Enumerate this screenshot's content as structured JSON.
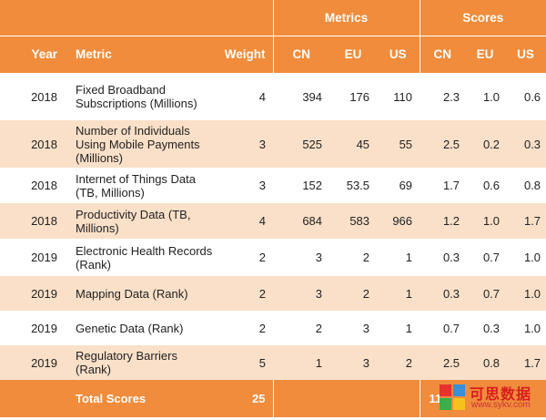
{
  "header": {
    "group_metrics": "Metrics",
    "group_scores": "Scores",
    "col_year": "Year",
    "col_metric": "Metric",
    "col_weight": "Weight",
    "col_m_cn": "CN",
    "col_m_eu": "EU",
    "col_m_us": "US",
    "col_s_cn": "CN",
    "col_s_eu": "EU",
    "col_s_us": "US"
  },
  "rows": [
    {
      "year": "2018",
      "metric": "Fixed Broadband Subscriptions (Millions)",
      "weight": "4",
      "cn": "394",
      "eu": "176",
      "us": "110",
      "s_cn": "2.3",
      "s_eu": "1.0",
      "s_us": "0.6"
    },
    {
      "year": "2018",
      "metric": "Number of Individuals Using Mobile Payments (Millions)",
      "weight": "3",
      "cn": "525",
      "eu": "45",
      "us": "55",
      "s_cn": "2.5",
      "s_eu": "0.2",
      "s_us": "0.3"
    },
    {
      "year": "2018",
      "metric": "Internet of Things Data (TB, Millions)",
      "weight": "3",
      "cn": "152",
      "eu": "53.5",
      "us": "69",
      "s_cn": "1.7",
      "s_eu": "0.6",
      "s_us": "0.8"
    },
    {
      "year": "2018",
      "metric": "Productivity Data (TB, Millions)",
      "weight": "4",
      "cn": "684",
      "eu": "583",
      "us": "966",
      "s_cn": "1.2",
      "s_eu": "1.0",
      "s_us": "1.7"
    },
    {
      "year": "2019",
      "metric": "Electronic Health Records (Rank)",
      "weight": "2",
      "cn": "3",
      "eu": "2",
      "us": "1",
      "s_cn": "0.3",
      "s_eu": "0.7",
      "s_us": "1.0"
    },
    {
      "year": "2019",
      "metric": "Mapping Data (Rank)",
      "weight": "2",
      "cn": "3",
      "eu": "2",
      "us": "1",
      "s_cn": "0.3",
      "s_eu": "0.7",
      "s_us": "1.0"
    },
    {
      "year": "2019",
      "metric": "Genetic Data (Rank)",
      "weight": "2",
      "cn": "2",
      "eu": "3",
      "us": "1",
      "s_cn": "0.7",
      "s_eu": "0.3",
      "s_us": "1.0"
    },
    {
      "year": "2019",
      "metric": "Regulatory Barriers (Rank)",
      "weight": "5",
      "cn": "1",
      "eu": "3",
      "us": "2",
      "s_cn": "2.5",
      "s_eu": "0.8",
      "s_us": "1.7"
    }
  ],
  "totals": {
    "label": "Total Scores",
    "weight": "25",
    "score_cn_partial": "11"
  },
  "watermark": {
    "title": "可思数据",
    "url": "www.sykv.com",
    "logo_icon": "four-color-square-logo"
  }
}
